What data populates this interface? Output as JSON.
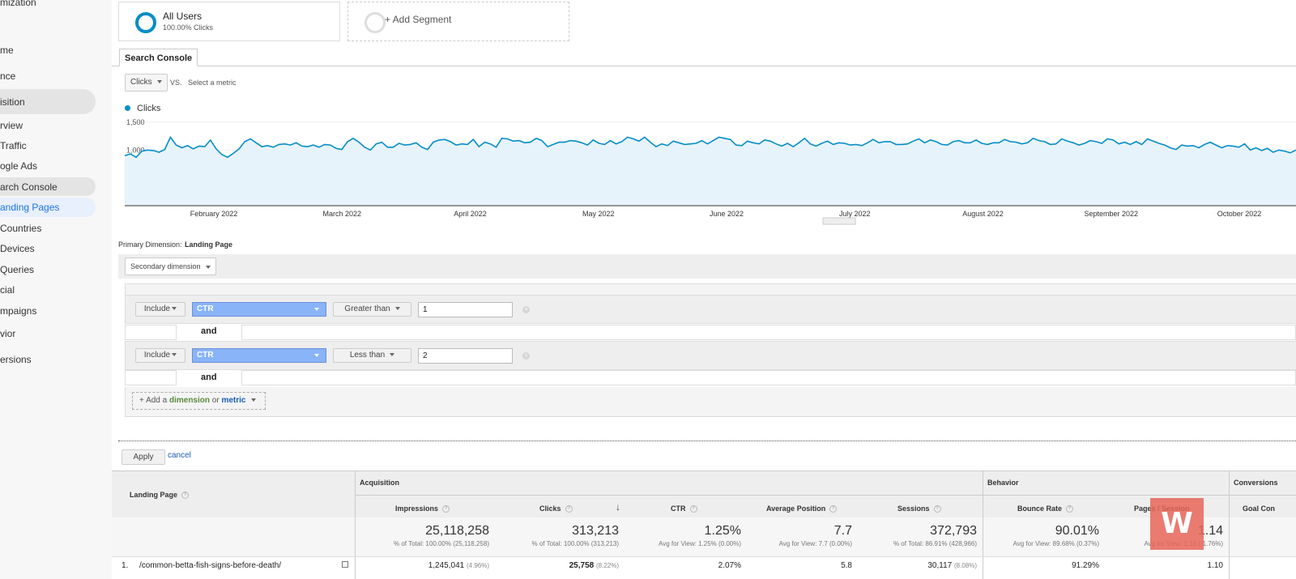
{
  "sidebar": {
    "items": [
      {
        "label": "mization",
        "selected": false
      },
      {
        "label": "me",
        "selected": false
      },
      {
        "label": "nce",
        "selected": false
      },
      {
        "label": "isition",
        "selected": false
      },
      {
        "label": "rview",
        "selected": false
      },
      {
        "label": "Traffic",
        "selected": false
      },
      {
        "label": "ogle Ads",
        "selected": false
      },
      {
        "label": "arch Console",
        "selected": false
      },
      {
        "label": "anding Pages",
        "selected": true
      },
      {
        "label": "Countries",
        "selected": false
      },
      {
        "label": "Devices",
        "selected": false
      },
      {
        "label": "Queries",
        "selected": false
      },
      {
        "label": "cial",
        "selected": false
      },
      {
        "label": "mpaigns",
        "selected": false
      },
      {
        "label": "vior",
        "selected": false
      },
      {
        "label": "ersions",
        "selected": false
      }
    ]
  },
  "segments": {
    "all_users": {
      "title": "All Users",
      "subtitle": "100.00% Clicks"
    },
    "add_segment": "+ Add Segment"
  },
  "tab": "Search Console",
  "metric_selector": {
    "metric": "Clicks",
    "vs": "VS.",
    "select_metric": "Select a metric"
  },
  "chart_data": {
    "type": "area",
    "legend": "Clicks",
    "y_ticks": [
      "1,500",
      "1,000",
      "500"
    ],
    "x_labels": [
      "February 2022",
      "March 2022",
      "April 2022",
      "May 2022",
      "June 2022",
      "July 2022",
      "August 2022",
      "September 2022",
      "October 2022"
    ],
    "ylim": [
      0,
      1600
    ],
    "color": "#058dc7",
    "values": [
      900,
      930,
      870,
      980,
      1000,
      990,
      960,
      1010,
      1230,
      1090,
      1040,
      1080,
      1020,
      1070,
      1060,
      1180,
      1020,
      920,
      870,
      940,
      1020,
      1150,
      1200,
      1130,
      1060,
      1080,
      1050,
      1100,
      1110,
      1090,
      1130,
      1070,
      1060,
      1090,
      1050,
      1100,
      1090,
      1030,
      1010,
      1150,
      1210,
      1140,
      1050,
      1000,
      1110,
      1140,
      1050,
      1050,
      1120,
      1090,
      1100,
      1130,
      1050,
      1010,
      1140,
      1180,
      1190,
      1150,
      1090,
      1110,
      1100,
      1190,
      1060,
      1140,
      1110,
      1050,
      1210,
      1200,
      1160,
      1170,
      1130,
      1140,
      1210,
      1170,
      1060,
      1100,
      1140,
      1140,
      1170,
      1160,
      1130,
      1090,
      1180,
      1120,
      1100,
      1170,
      1110,
      1150,
      1230,
      1200,
      1160,
      1230,
      1140,
      1060,
      1110,
      1080,
      1160,
      1130,
      1100,
      1110,
      1120,
      1170,
      1110,
      1170,
      1230,
      1210,
      1190,
      1090,
      1080,
      1160,
      1130,
      1110,
      1180,
      1160,
      1110,
      1070,
      1120,
      1060,
      1130,
      1210,
      1110,
      1070,
      1120,
      1160,
      1100,
      1130,
      1120,
      1090,
      1100,
      1080,
      1130,
      1190,
      1130,
      1150,
      1150,
      1100,
      1100,
      1110,
      1160,
      1200,
      1130,
      1180,
      1150,
      1100,
      1090,
      1150,
      1170,
      1130,
      1130,
      1180,
      1120,
      1100,
      1130,
      1130,
      1190,
      1150,
      1140,
      1110,
      1130,
      1210,
      1170,
      1150,
      1100,
      1110,
      1200,
      1160,
      1130,
      1090,
      1120,
      1170,
      1150,
      1120,
      1200,
      1180,
      1110,
      1140,
      1100,
      1150,
      1100,
      1200,
      1160,
      1120,
      1090,
      1040,
      1010,
      1090,
      1070,
      1080,
      1040,
      1100,
      1140,
      1090,
      1040,
      1080,
      1070,
      1050,
      1110,
      1000,
      1040,
      990,
      1030,
      960,
      1000,
      980,
      950,
      1000
    ]
  },
  "dimension": {
    "label": "Primary Dimension:",
    "value": "Landing Page",
    "secondary": "Secondary dimension"
  },
  "filters": [
    {
      "include": "Include",
      "metric": "CTR",
      "condition": "Greater than",
      "value": "1"
    },
    {
      "include": "Include",
      "metric": "CTR",
      "condition": "Less than",
      "value": "2"
    }
  ],
  "and_label": "and",
  "add_dimension": {
    "prefix": "+ Add a",
    "dimension": "dimension",
    "or": "or",
    "metric": "metric"
  },
  "actions": {
    "apply": "Apply",
    "cancel": "cancel"
  },
  "table": {
    "landing_page_header": "Landing Page",
    "groups": {
      "acquisition": "Acquisition",
      "behavior": "Behavior",
      "conversions": "Conversions"
    },
    "columns": [
      "Impressions",
      "Clicks",
      "CTR",
      "Average Position",
      "Sessions",
      "Bounce Rate",
      "Pages / Session",
      "Goal Con"
    ],
    "totals": [
      {
        "value": "25,118,258",
        "sub": "% of Total: 100.00% (25,118,258)"
      },
      {
        "value": "313,213",
        "sub": "% of Total: 100.00% (313,213)"
      },
      {
        "value": "1.25%",
        "sub": "Avg for View: 1.25% (0.00%)"
      },
      {
        "value": "7.7",
        "sub": "Avg for View: 7.7 (0.00%)"
      },
      {
        "value": "372,793",
        "sub": "% of Total: 86.91% (428,966)"
      },
      {
        "value": "90.01%",
        "sub": "Avg for View: 89.68% (0.37%)"
      },
      {
        "value": "1.14",
        "sub": "Avg for View: 1.16 (-1.76%)"
      }
    ],
    "row1": {
      "index": "1.",
      "page": "/common-betta-fish-signs-before-death/",
      "impressions": "1,245,041",
      "impressions_pct": "(4.96%)",
      "clicks": "25,758",
      "clicks_pct": "(8.22%)",
      "ctr": "2.07%",
      "position": "5.8",
      "sessions": "30,117",
      "sessions_pct": "(8.08%)",
      "bounce": "91.29%",
      "pages": "1.10"
    }
  }
}
